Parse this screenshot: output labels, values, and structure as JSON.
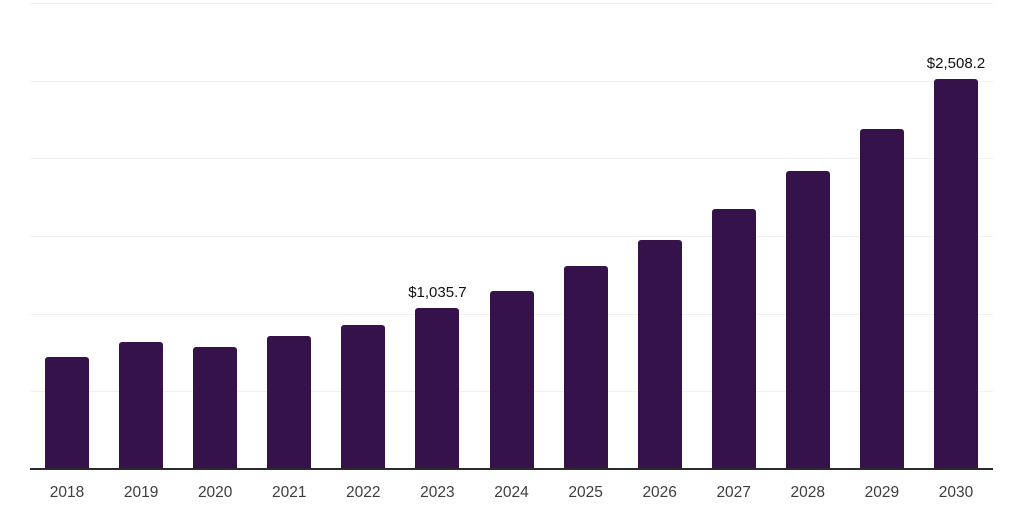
{
  "chart_data": {
    "type": "bar",
    "title": "",
    "xlabel": "",
    "ylabel": "",
    "categories": [
      "2018",
      "2019",
      "2020",
      "2021",
      "2022",
      "2023",
      "2024",
      "2025",
      "2026",
      "2027",
      "2028",
      "2029",
      "2030"
    ],
    "values": [
      720,
      815,
      788,
      858,
      928,
      1035.7,
      1148,
      1307,
      1474,
      1674,
      1919,
      2189,
      2508.2
    ],
    "value_labels": [
      "",
      "",
      "",
      "",
      "",
      "$1,035.7",
      "",
      "",
      "",
      "",
      "",
      "",
      "$2,508.2"
    ],
    "ylim": [
      0,
      3000
    ],
    "ytick_step": 500,
    "grid": "horizontal-only",
    "y_axis_labels_visible": false,
    "legend": "none",
    "colors": {
      "bar": "#351249",
      "gridline": "#f0f0f0",
      "axis": "#2b2b2b",
      "tick_text": "#3d3d3d",
      "value_label_text": "#111111",
      "background": "#ffffff"
    }
  }
}
